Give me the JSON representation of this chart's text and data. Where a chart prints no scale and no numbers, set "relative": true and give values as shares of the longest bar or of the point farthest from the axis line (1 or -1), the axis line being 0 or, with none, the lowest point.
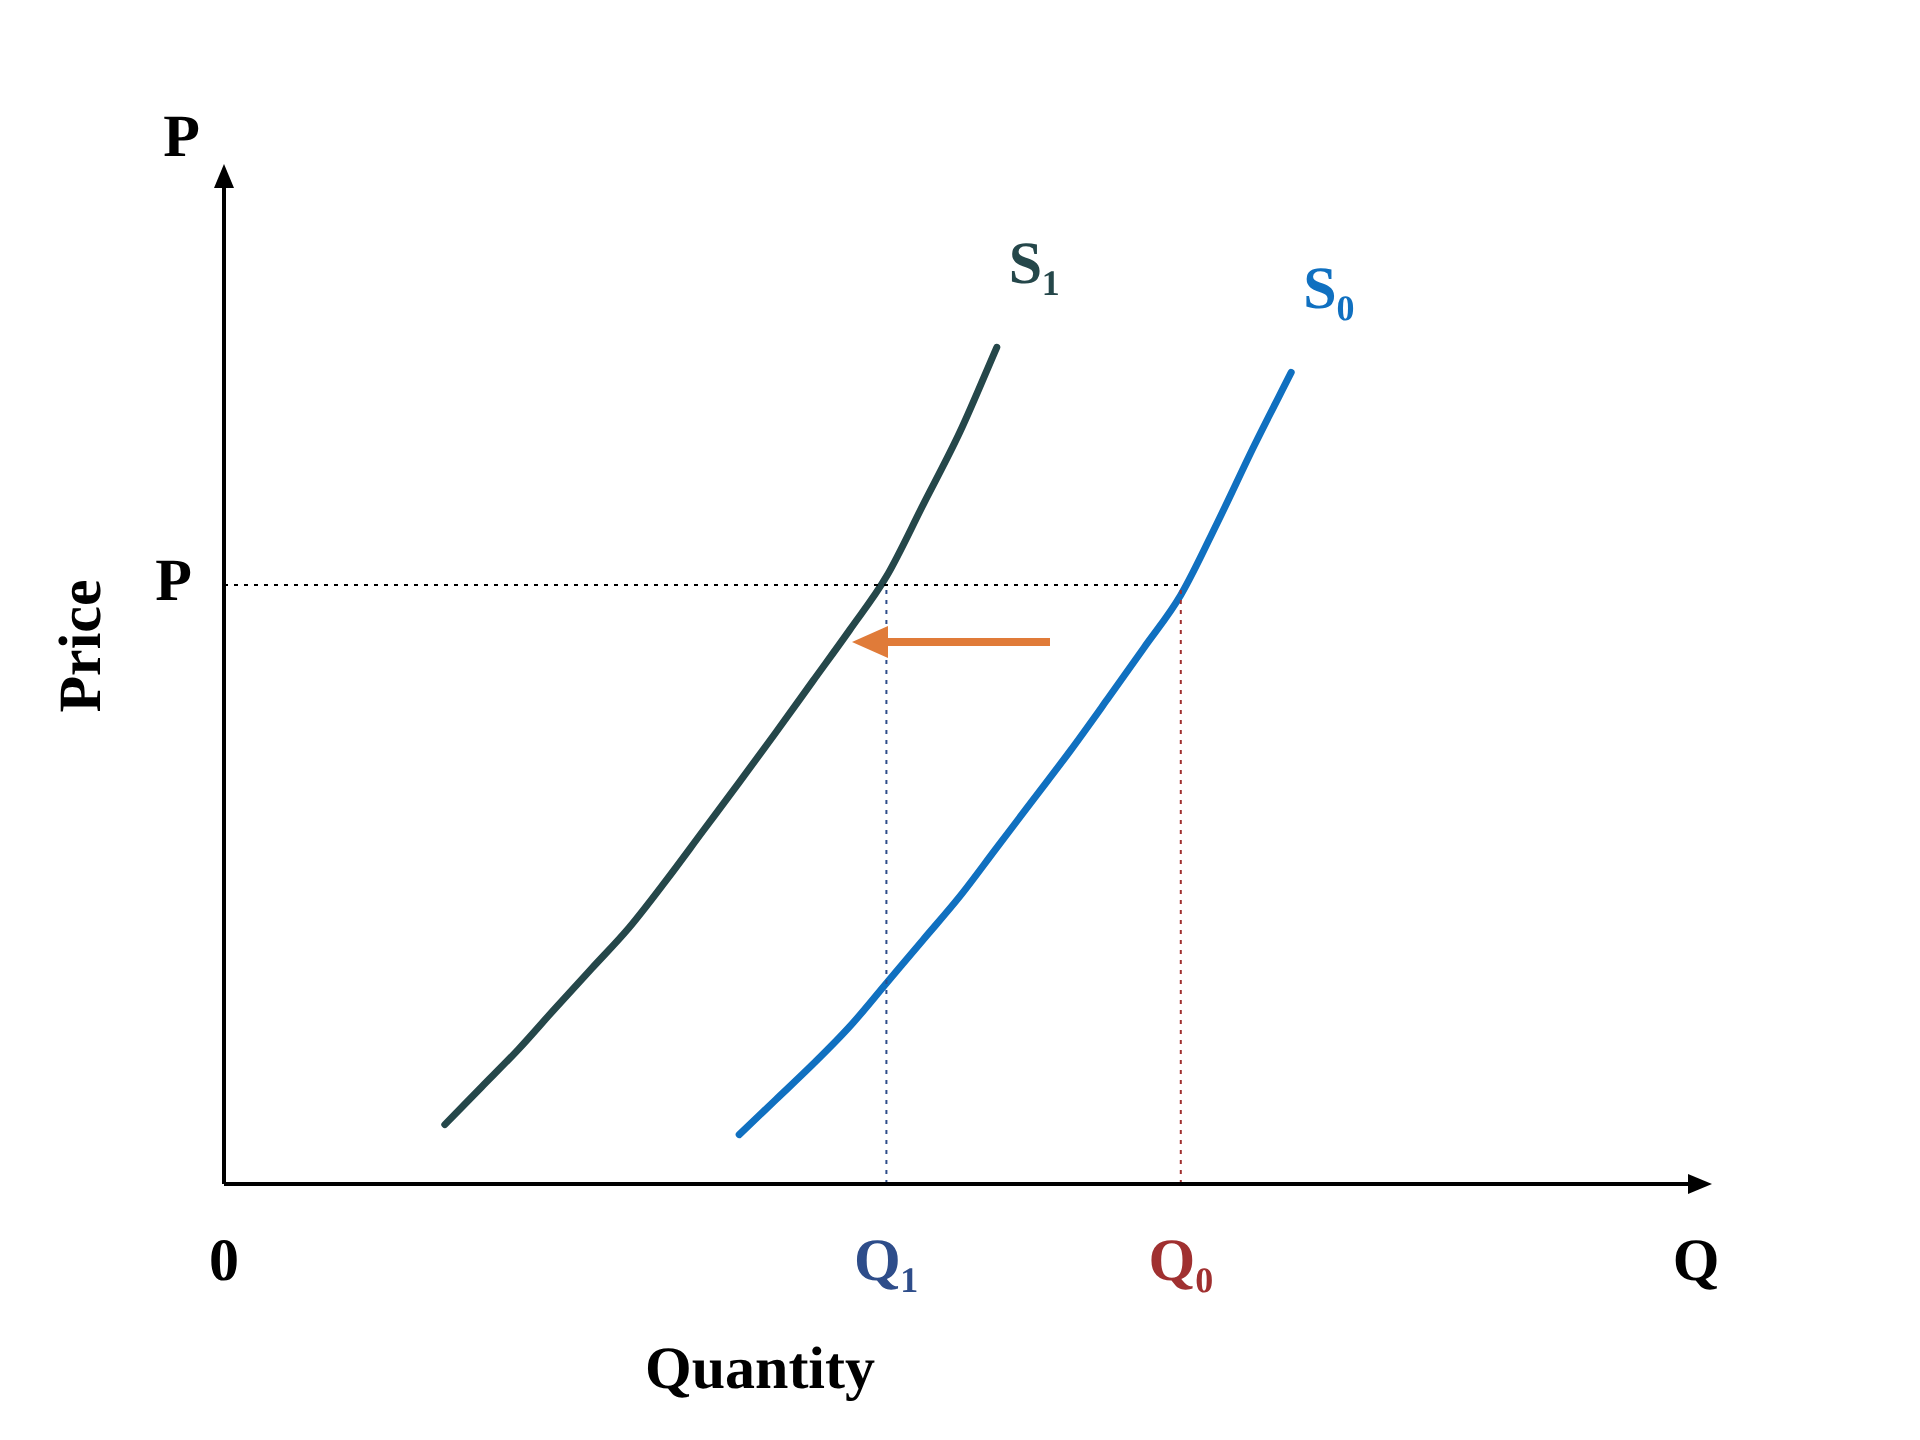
{
  "chart_data": {
    "type": "line",
    "xlabel": "Quantity",
    "ylabel": "Price",
    "relative": true,
    "annotations": [
      "P"
    ],
    "categories": [
      "0",
      null,
      null,
      null,
      null,
      null,
      null,
      null,
      null,
      null,
      null,
      null,
      null,
      null,
      null,
      null,
      null,
      null,
      "Q₁",
      null,
      null,
      null,
      null,
      null,
      null,
      null,
      "Q₀",
      null,
      null,
      null,
      null,
      null,
      null,
      null,
      null,
      null,
      null,
      null,
      null,
      null,
      "Q"
    ],
    "grid": false,
    "legend": false,
    "marker": "none",
    "line_style": "solid",
    "series": [
      {
        "name": "S₁",
        "color": "#25474a",
        "values": [
          null,
          null,
          null,
          null,
          null,
          null,
          0.071,
          0.116,
          0.161,
          0.21,
          0.258,
          0.306,
          0.362,
          0.421,
          0.48,
          0.54,
          0.601,
          0.662,
          0.726,
          0.812,
          0.899,
          1,
          null,
          null,
          null,
          null,
          null,
          null,
          null,
          null,
          null,
          null,
          null,
          null,
          null,
          null,
          null,
          null,
          null,
          null,
          null
        ]
      },
      {
        "name": "S₀",
        "color": "#1070c0",
        "values": [
          null,
          null,
          null,
          null,
          null,
          null,
          null,
          null,
          null,
          null,
          null,
          null,
          null,
          null,
          0.059,
          0.101,
          0.143,
          0.188,
          0.24,
          0.292,
          0.344,
          0.402,
          0.46,
          0.518,
          0.579,
          0.641,
          0.704,
          0.791,
          0.883,
          0.97,
          null,
          null,
          null,
          null,
          null,
          null,
          null,
          null,
          null,
          null,
          null
        ]
      }
    ],
    "ref_lines": [
      {
        "axis": "y",
        "value": 0.716,
        "label": "P",
        "color": "#000000",
        "line_style": "dotted"
      },
      {
        "axis": "x",
        "value": "Q₁",
        "color": "#2e4d8a",
        "line_style": "dotted"
      },
      {
        "axis": "x",
        "value": "Q₀",
        "color": "#a03030",
        "line_style": "dotted"
      }
    ]
  }
}
